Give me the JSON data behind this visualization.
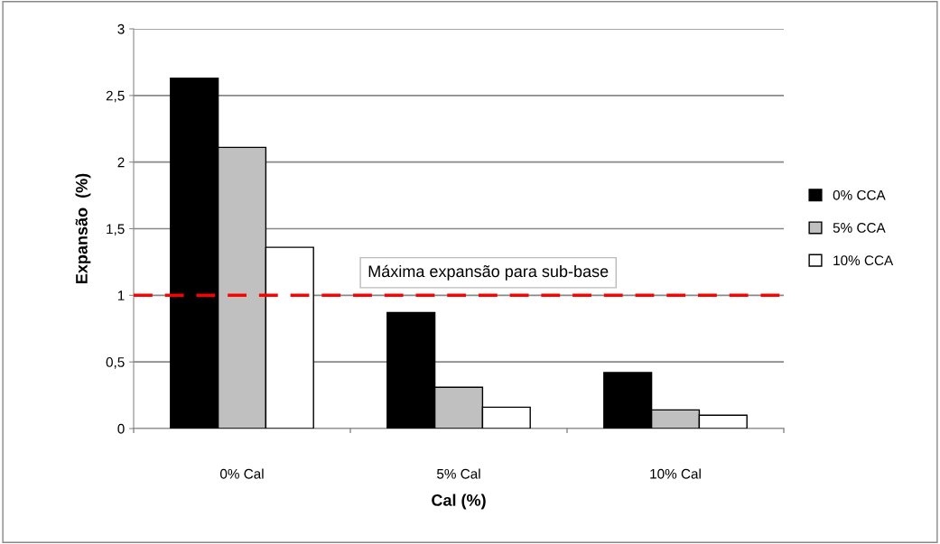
{
  "chart_data": {
    "type": "bar",
    "xlabel": "Cal (%)",
    "ylabel": "Expansão  (%)",
    "categories": [
      "0% Cal",
      "5% Cal",
      "10% Cal"
    ],
    "series": [
      {
        "name": "0% CCA",
        "color": "#000000",
        "values": [
          2.63,
          0.87,
          0.42
        ]
      },
      {
        "name": "5% CCA",
        "color": "#c0c0c0",
        "values": [
          2.11,
          0.31,
          0.14
        ]
      },
      {
        "name": "10% CCA",
        "color": "#ffffff",
        "values": [
          1.36,
          0.16,
          0.1
        ]
      }
    ],
    "ylim": [
      0,
      3
    ],
    "yticks": [
      0,
      {
        "value": 0.5,
        "label": "0,5"
      },
      1,
      {
        "value": 1.5,
        "label": "1,5"
      },
      2,
      {
        "value": 2.5,
        "label": "2,5"
      },
      3
    ],
    "ref_lines": [
      {
        "axis": "y",
        "value": 1,
        "label": "Máxima expansão para sub-base",
        "color": "#ff0000",
        "line_style": "dashed"
      }
    ],
    "grid": "y",
    "legend": "right"
  }
}
